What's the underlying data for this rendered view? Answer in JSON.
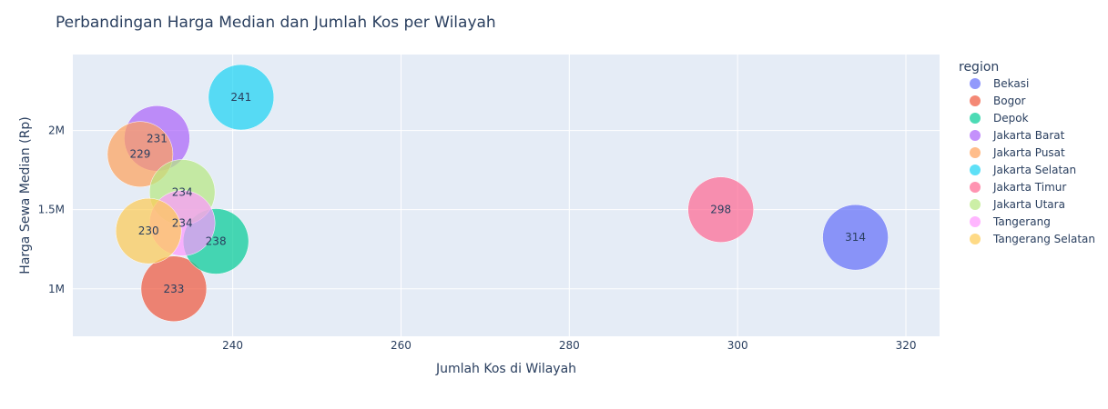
{
  "chart_data": {
    "type": "scatter",
    "title": "Perbandingan Harga Median dan Jumlah Kos per Wilayah",
    "xlabel": "Jumlah Kos di Wilayah",
    "ylabel": "Harga Sewa Median (Rp)",
    "xlim": [
      221,
      324
    ],
    "ylim": [
      700000,
      2480000
    ],
    "x_ticks": [
      240,
      260,
      280,
      300,
      320
    ],
    "y_ticks": [
      {
        "value": 1000000,
        "label": "1M"
      },
      {
        "value": 1500000,
        "label": "1.5M"
      },
      {
        "value": 2000000,
        "label": "2M"
      }
    ],
    "grid": true,
    "legend_title": "region",
    "legend_position": "right",
    "bubble_labels": "x value",
    "series": [
      {
        "name": "Bekasi",
        "color": "#636efa",
        "x": 314,
        "y": 1325000,
        "label": "314"
      },
      {
        "name": "Bogor",
        "color": "#ef553b",
        "x": 233,
        "y": 1000000,
        "label": "233"
      },
      {
        "name": "Depok",
        "color": "#00cc96",
        "x": 238,
        "y": 1300000,
        "label": "238"
      },
      {
        "name": "Jakarta Barat",
        "color": "#ab63fa",
        "x": 231,
        "y": 1950000,
        "label": "231"
      },
      {
        "name": "Jakarta Pusat",
        "color": "#ffa15a",
        "x": 229,
        "y": 1850000,
        "label": "229"
      },
      {
        "name": "Jakarta Selatan",
        "color": "#19d3f3",
        "x": 241,
        "y": 2210000,
        "label": "241"
      },
      {
        "name": "Jakarta Timur",
        "color": "#ff6692",
        "x": 298,
        "y": 1500000,
        "label": "298"
      },
      {
        "name": "Jakarta Utara",
        "color": "#b6e880",
        "x": 234,
        "y": 1610000,
        "label": "234"
      },
      {
        "name": "Tangerang",
        "color": "#ff97ff",
        "x": 234,
        "y": 1415000,
        "label": "234"
      },
      {
        "name": "Tangerang Selatan",
        "color": "#fecb52",
        "x": 230,
        "y": 1365000,
        "label": "230"
      }
    ]
  }
}
